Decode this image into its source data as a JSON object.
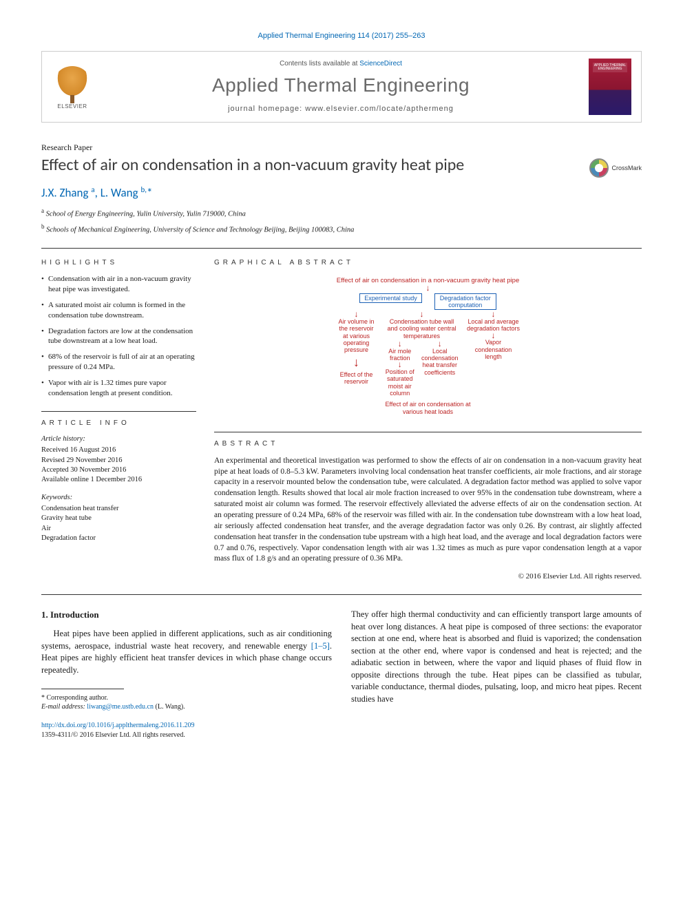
{
  "citation": "Applied Thermal Engineering 114 (2017) 255–263",
  "masthead": {
    "contents_prefix": "Contents lists available at ",
    "contents_link": "ScienceDirect",
    "journal": "Applied Thermal Engineering",
    "homepage_label": "journal homepage: ",
    "homepage_url": "www.elsevier.com/locate/apthermeng",
    "publisher_name": "ELSEVIER",
    "cover_title": "APPLIED THERMAL ENGINEERING"
  },
  "paper_type": "Research Paper",
  "title": "Effect of air on condensation in a non-vacuum gravity heat pipe",
  "crossmark_label": "CrossMark",
  "authors_html": "J.X. Zhang <sup>a</sup>, L. Wang <sup>b,</sup><span class='ast'>*</span>",
  "affiliations": [
    "a School of Energy Engineering, Yulin University, Yulin 719000, China",
    "b Schools of Mechanical Engineering, University of Science and Technology Beijing, Beijing 100083, China"
  ],
  "labels": {
    "highlights": "HIGHLIGHTS",
    "graphical_abstract": "GRAPHICAL ABSTRACT",
    "article_info": "ARTICLE INFO",
    "abstract": "ABSTRACT"
  },
  "highlights": [
    "Condensation with air in a non-vacuum gravity heat pipe was investigated.",
    "A saturated moist air column is formed in the condensation tube downstream.",
    "Degradation factors are low at the condensation tube downstream at a low heat load.",
    "68% of the reservoir is full of air at an operating pressure of 0.24 MPa.",
    "Vapor with air is 1.32 times pure vapor condensation length at present condition."
  ],
  "graphical_abstract": {
    "root": "Effect of air on condensation in a non-vacuum gravity heat pipe",
    "l2a": "Experimental study",
    "l2b": "Degradation factor computation",
    "l3a": "Air volume in the reservoir at various operating pressure",
    "l3b": "Condensation tube wall and cooling water central temperatures",
    "l3c": "Local and average degradation factors",
    "l4a": "Air mole fraction",
    "l4b": "Local condensation heat transfer coefficients",
    "l4c": "Vapor condensation length",
    "leaf_a": "Effect of the reservoir",
    "leaf_b": "Position of saturated moist air column",
    "leaf_c": "Effect of air on condensation at various heat loads",
    "colors": {
      "red": "#c02020",
      "blue": "#1a5fb4"
    }
  },
  "article_info": {
    "history_head": "Article history:",
    "history": [
      "Received 16 August 2016",
      "Revised 29 November 2016",
      "Accepted 30 November 2016",
      "Available online 1 December 2016"
    ],
    "keywords_head": "Keywords:",
    "keywords": [
      "Condensation heat transfer",
      "Gravity heat tube",
      "Air",
      "Degradation factor"
    ]
  },
  "abstract": "An experimental and theoretical investigation was performed to show the effects of air on condensation in a non-vacuum gravity heat pipe at heat loads of 0.8–5.3 kW. Parameters involving local condensation heat transfer coefficients, air mole fractions, and air storage capacity in a reservoir mounted below the condensation tube, were calculated. A degradation factor method was applied to solve vapor condensation length. Results showed that local air mole fraction increased to over 95% in the condensation tube downstream, where a saturated moist air column was formed. The reservoir effectively alleviated the adverse effects of air on the condensation section. At an operating pressure of 0.24 MPa, 68% of the reservoir was filled with air. In the condensation tube downstream with a low heat load, air seriously affected condensation heat transfer, and the average degradation factor was only 0.26. By contrast, air slightly affected condensation heat transfer in the condensation tube upstream with a high heat load, and the average and local degradation factors were 0.7 and 0.76, respectively. Vapor condensation length with air was 1.32 times as much as pure vapor condensation length at a vapor mass flux of 1.8 g/s and an operating pressure of 0.36 MPa.",
  "copyright": "© 2016 Elsevier Ltd. All rights reserved.",
  "section1": {
    "heading": "1. Introduction",
    "para_left_pre": "Heat pipes have been applied in different applications, such as air conditioning systems, aerospace, industrial waste heat recovery, and renewable energy ",
    "para_left_ref": "[1–5]",
    "para_left_post": ". Heat pipes are highly efficient heat transfer devices in which phase change occurs repeatedly.",
    "para_right": "They offer high thermal conductivity and can efficiently transport large amounts of heat over long distances. A heat pipe is composed of three sections: the evaporator section at one end, where heat is absorbed and fluid is vaporized; the condensation section at the other end, where vapor is condensed and heat is rejected; and the adiabatic section in between, where the vapor and liquid phases of fluid flow in opposite directions through the tube. Heat pipes can be classified as tubular, variable conductance, thermal diodes, pulsating, loop, and micro heat pipes. Recent studies have"
  },
  "footnote": {
    "corr": "* Corresponding author.",
    "email_label": "E-mail address: ",
    "email": "liwang@me.ustb.edu.cn",
    "email_who": " (L. Wang)."
  },
  "doi": {
    "url": "http://dx.doi.org/10.1016/j.applthermaleng.2016.11.209",
    "issn_line": "1359-4311/© 2016 Elsevier Ltd. All rights reserved."
  }
}
